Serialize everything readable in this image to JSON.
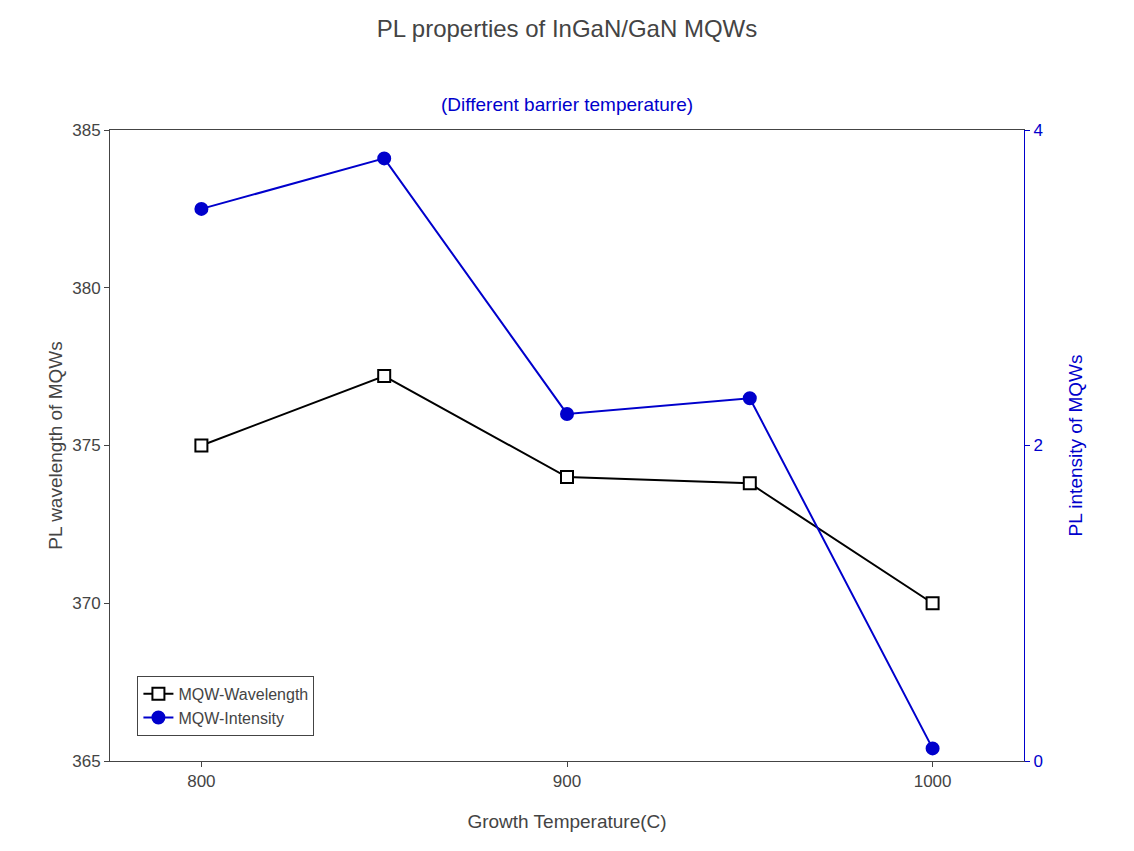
{
  "chart_data": {
    "type": "line",
    "title": "PL properties of InGaN/GaN MQWs",
    "subtitle": "(Different barrier temperature)",
    "x_label": "Growth Temperature(C)",
    "y_label": "PL wavelength of MQWs",
    "y2_label": "PL intensity of MQWs",
    "x": [
      800,
      850,
      900,
      950,
      1000
    ],
    "series": [
      {
        "name": "MQW-Wavelength",
        "color": "#000000",
        "marker": "square",
        "values": [
          375.0,
          377.2,
          374.0,
          373.8,
          370.0
        ]
      },
      {
        "name": "MQW-Intensity",
        "color": "#0000cc",
        "marker": "circle",
        "axis": "y2",
        "values": [
          3.5,
          3.82,
          2.2,
          2.3,
          0.08
        ]
      }
    ],
    "xlim": [
      775,
      1025
    ],
    "xticks": [
      800,
      900,
      1000
    ],
    "ylim": [
      365,
      385
    ],
    "yticks": [
      365,
      370,
      375,
      380,
      385
    ],
    "y2lim": [
      0,
      4
    ],
    "y2ticks": [
      0,
      2,
      4
    ],
    "grid": false,
    "legend": "lower left"
  }
}
